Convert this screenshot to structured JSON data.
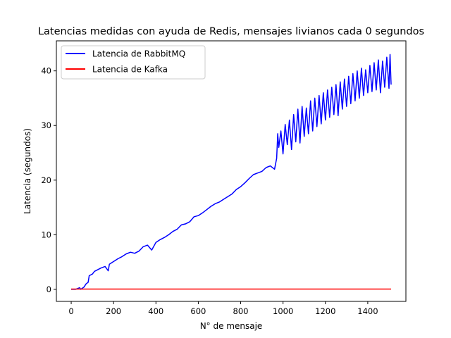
{
  "chart_data": {
    "type": "line",
    "title": "Latencias medidas con ayuda de Redis, mensajes livianos cada 0 segundos",
    "xlabel": "N° de mensaje",
    "ylabel": "Latencia (segundos)",
    "xlim": [
      -70,
      1580
    ],
    "ylim": [
      -2.2,
      45.5
    ],
    "xticks": [
      0,
      200,
      400,
      600,
      800,
      1000,
      1200,
      1400
    ],
    "yticks": [
      0,
      10,
      20,
      30,
      40
    ],
    "legend_position": "top-left",
    "grid": false,
    "series": [
      {
        "name": "Latencia de RabbitMQ",
        "color": "#0000ff",
        "x": [
          0,
          20,
          40,
          45,
          60,
          70,
          80,
          85,
          100,
          110,
          120,
          140,
          160,
          175,
          180,
          200,
          220,
          240,
          260,
          280,
          300,
          320,
          340,
          360,
          380,
          400,
          420,
          440,
          460,
          480,
          500,
          520,
          540,
          560,
          580,
          600,
          620,
          640,
          660,
          680,
          700,
          720,
          740,
          760,
          780,
          800,
          820,
          840,
          860,
          880,
          900,
          920,
          940,
          960,
          970,
          975,
          980,
          990,
          1000,
          1010,
          1020,
          1030,
          1040,
          1050,
          1060,
          1070,
          1080,
          1090,
          1100,
          1110,
          1120,
          1130,
          1140,
          1150,
          1160,
          1170,
          1180,
          1190,
          1200,
          1210,
          1220,
          1230,
          1240,
          1250,
          1260,
          1270,
          1280,
          1290,
          1300,
          1310,
          1320,
          1330,
          1340,
          1350,
          1360,
          1370,
          1380,
          1390,
          1400,
          1410,
          1420,
          1430,
          1440,
          1450,
          1460,
          1470,
          1480,
          1490,
          1500,
          1505,
          1510
        ],
        "y": [
          0,
          0,
          0.3,
          0.0,
          0.4,
          1.0,
          1.3,
          2.5,
          2.8,
          3.3,
          3.5,
          3.9,
          4.2,
          3.4,
          4.6,
          5.1,
          5.6,
          6.0,
          6.5,
          6.8,
          6.6,
          7.0,
          7.8,
          8.1,
          7.2,
          8.6,
          9.1,
          9.5,
          10.0,
          10.6,
          11.0,
          11.8,
          12.0,
          12.4,
          13.3,
          13.5,
          14.0,
          14.6,
          15.2,
          15.7,
          16.0,
          16.5,
          17.0,
          17.5,
          18.3,
          18.8,
          19.5,
          20.3,
          21.0,
          21.3,
          21.6,
          22.3,
          22.6,
          22.0,
          24.0,
          28.5,
          26.0,
          29.0,
          24.8,
          30.2,
          26.5,
          31.0,
          25.6,
          32.0,
          27.0,
          33.0,
          26.8,
          33.5,
          28.0,
          33.2,
          28.5,
          34.5,
          29.0,
          35.0,
          29.8,
          35.5,
          30.3,
          36.0,
          31.0,
          36.5,
          31.5,
          37.0,
          32.0,
          37.5,
          31.8,
          38.0,
          33.0,
          38.5,
          33.5,
          39.0,
          34.0,
          39.5,
          34.5,
          40.0,
          35.0,
          40.5,
          35.5,
          40.2,
          36.0,
          41.0,
          36.2,
          41.5,
          36.5,
          42.0,
          36.0,
          41.8,
          37.0,
          42.5,
          36.8,
          43.0,
          37.5
        ]
      },
      {
        "name": "Latencia de Kafka",
        "color": "#ff0000",
        "x": [
          0,
          1510
        ],
        "y": [
          0.05,
          0.05
        ]
      }
    ]
  }
}
